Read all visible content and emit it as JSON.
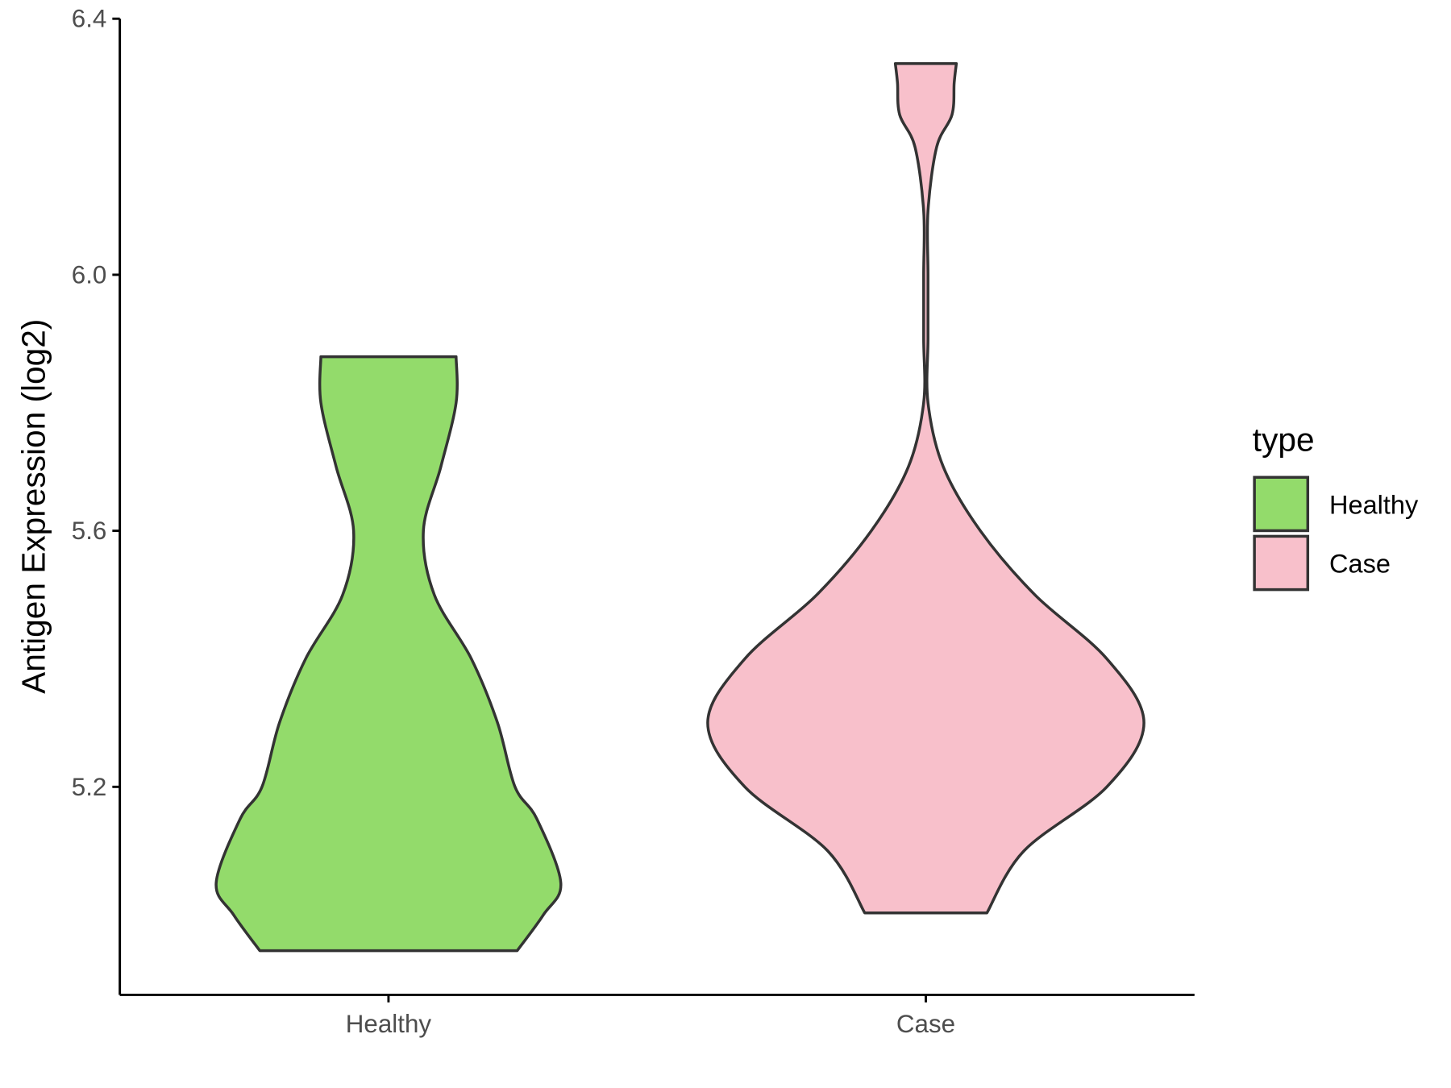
{
  "chart_data": {
    "type": "violin",
    "ylabel": "Antigen Expression (log2)",
    "categories": [
      "Healthy",
      "Case"
    ],
    "legend_title": "type",
    "legend": "right",
    "ylim": [
      4.875,
      6.4
    ],
    "yticks": [
      5.2,
      5.6,
      {
        "value": 6,
        "label": "6.0"
      },
      6.4
    ],
    "series": [
      {
        "name": "Healthy",
        "color": "#93db6b",
        "y": [
          4.944,
          5.0,
          5.05,
          5.15,
          5.2,
          5.3,
          5.4,
          5.5,
          5.6,
          5.7,
          5.8,
          5.872
        ],
        "density": [
          0.59,
          0.71,
          0.79,
          0.68,
          0.58,
          0.5,
          0.38,
          0.21,
          0.16,
          0.24,
          0.31,
          0.31
        ]
      },
      {
        "name": "Case",
        "color": "#f8c0cb",
        "y": [
          5.003,
          5.1,
          5.2,
          5.3,
          5.4,
          5.5,
          5.6,
          5.7,
          5.8,
          5.9,
          6.0,
          6.1,
          6.2,
          6.25,
          6.3,
          6.33
        ],
        "density": [
          0.28,
          0.45,
          0.83,
          1,
          0.83,
          0.5,
          0.25,
          0.08,
          0.01,
          0.01,
          0.01,
          0.01,
          0.05,
          0.12,
          0.13,
          0.14
        ]
      }
    ]
  }
}
